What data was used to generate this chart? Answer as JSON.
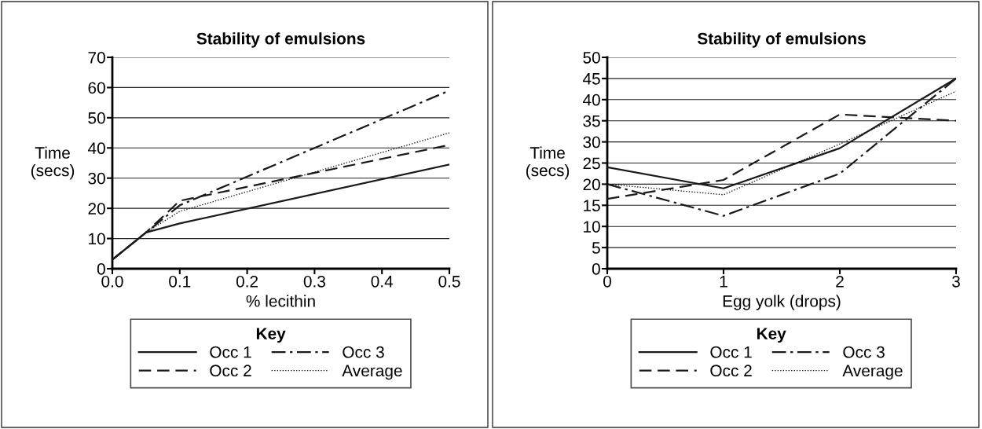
{
  "chart_data": [
    {
      "type": "line",
      "title": "Stability of emulsions",
      "xlabel": "% lecithin",
      "ylabel": "Time\n(secs)",
      "legend_title": "Key",
      "legend": "bottom",
      "grid": "y",
      "marker": "none",
      "xlim": [
        0,
        0.5
      ],
      "xticks": [
        {
          "value": 0,
          "label": "0.0"
        },
        0.1,
        0.2,
        0.3,
        0.4,
        0.5
      ],
      "ylim": [
        0,
        70
      ],
      "yticks": [
        0,
        10,
        20,
        30,
        40,
        50,
        60,
        70
      ],
      "x": [
        0,
        0.05,
        0.1,
        0.5
      ],
      "series": [
        {
          "name": "Occ 1",
          "color": "#1a1a1a",
          "line_style": "solid",
          "values": [
            3,
            12,
            15,
            34.5
          ]
        },
        {
          "name": "Occ 2",
          "color": "#1a1a1a",
          "line_style": "dashed",
          "values": [
            3,
            12,
            22.5,
            41
          ]
        },
        {
          "name": "Occ 3",
          "color": "#1a1a1a",
          "line_style": "dashdot",
          "values": [
            3,
            12,
            21,
            59
          ]
        },
        {
          "name": "Average",
          "color": "#1a1a1a",
          "line_style": "dotted",
          "values": [
            3,
            12,
            19,
            45
          ]
        }
      ]
    },
    {
      "type": "line",
      "title": "Stability of emulsions",
      "xlabel": "Egg yolk (drops)",
      "ylabel": "Time\n(secs)",
      "legend_title": "Key",
      "legend": "bottom",
      "grid": "y",
      "marker": "none",
      "xlim": [
        0,
        3
      ],
      "xticks": [
        0,
        1,
        2,
        3
      ],
      "ylim": [
        0,
        50
      ],
      "yticks": [
        0,
        5,
        10,
        15,
        20,
        25,
        30,
        35,
        40,
        45,
        50
      ],
      "x": [
        0,
        1,
        2,
        3
      ],
      "series": [
        {
          "name": "Occ 1",
          "color": "#1a1a1a",
          "line_style": "solid",
          "values": [
            24,
            19,
            28.5,
            45
          ]
        },
        {
          "name": "Occ 2",
          "color": "#1a1a1a",
          "line_style": "dashed",
          "values": [
            16.5,
            21,
            36.5,
            35
          ]
        },
        {
          "name": "Occ 3",
          "color": "#1a1a1a",
          "line_style": "dashdot",
          "values": [
            20,
            12.5,
            22.5,
            45
          ]
        },
        {
          "name": "Average",
          "color": "#1a1a1a",
          "line_style": "dotted",
          "values": [
            20,
            17.5,
            29.5,
            42
          ]
        }
      ]
    }
  ]
}
